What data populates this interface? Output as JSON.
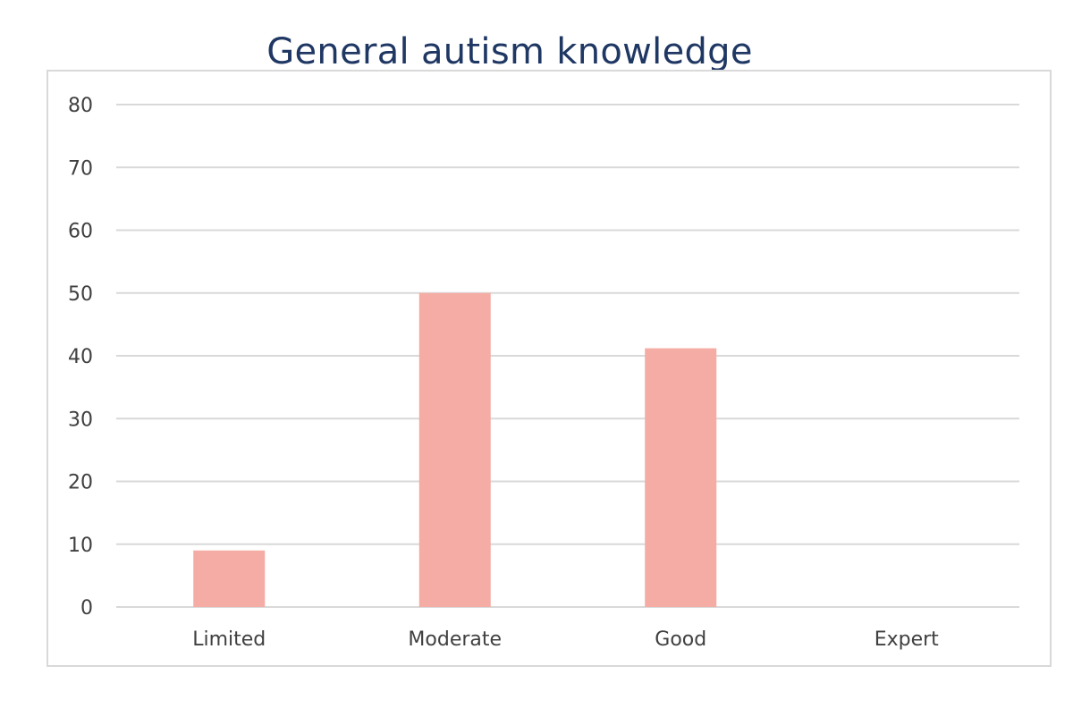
{
  "chart_data": {
    "type": "bar",
    "title": "General autism knowledge",
    "xlabel": "",
    "ylabel": "",
    "categories": [
      "Limited",
      "Moderate",
      "Good",
      "Expert"
    ],
    "series": [
      {
        "values": [
          9,
          50,
          41.2,
          0
        ]
      }
    ],
    "ylim": [
      0,
      80
    ],
    "yticks": [
      0,
      10,
      20,
      30,
      40,
      50,
      60,
      70,
      80
    ],
    "grid": true,
    "legend": "none",
    "colors": {
      "bar": "#f4aca4",
      "grid": "#d9d9d9",
      "title": "#1f3763",
      "text": "#404040"
    }
  }
}
